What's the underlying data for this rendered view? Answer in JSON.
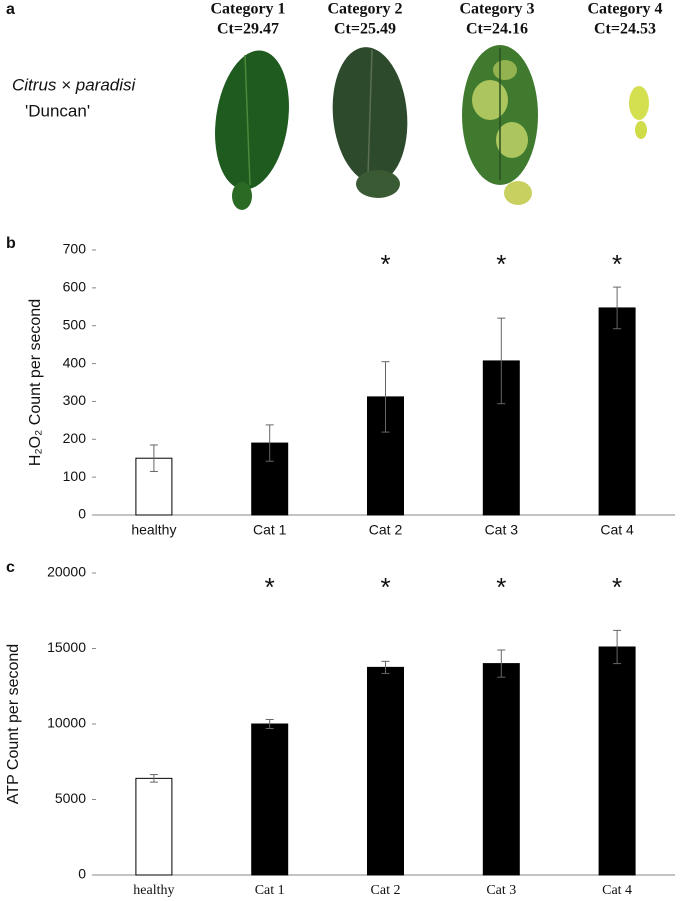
{
  "figure": {
    "panel_labels": [
      "a",
      "b",
      "c"
    ],
    "species": "Citrus × paradisi",
    "cultivar": "'Duncan'",
    "leaf_categories": [
      {
        "name": "Category 1",
        "ct": "Ct=29.47"
      },
      {
        "name": "Category 2",
        "ct": "Ct=25.49"
      },
      {
        "name": "Category 3",
        "ct": "Ct=24.16"
      },
      {
        "name": "Category 4",
        "ct": "Ct=24.53"
      }
    ]
  },
  "chart_data": [
    {
      "type": "bar",
      "ylabel": "H₂O₂ Count per second",
      "categories": [
        "healthy",
        "Cat 1",
        "Cat 2",
        "Cat 3",
        "Cat 4"
      ],
      "values": [
        150,
        190,
        312,
        407,
        547
      ],
      "errors": [
        35,
        48,
        93,
        113,
        55
      ],
      "colors": [
        "#ffffff",
        "#000000",
        "#000000",
        "#000000",
        "#000000"
      ],
      "annotations": [
        {
          "text": "*",
          "category": "Cat 2"
        },
        {
          "text": "*",
          "category": "Cat 3"
        },
        {
          "text": "*",
          "category": "Cat 4"
        }
      ],
      "ylim": [
        0,
        700
      ],
      "yticks": [
        0,
        100,
        200,
        300,
        400,
        500,
        600,
        700
      ]
    },
    {
      "type": "bar",
      "ylabel": "ATP Count per second",
      "categories": [
        "healthy",
        "Cat 1",
        "Cat 2",
        "Cat 3",
        "Cat 4"
      ],
      "values": [
        6400,
        10000,
        13750,
        14000,
        15100
      ],
      "errors": [
        250,
        300,
        400,
        900,
        1100
      ],
      "colors": [
        "#ffffff",
        "#000000",
        "#000000",
        "#000000",
        "#000000"
      ],
      "annotations": [
        {
          "text": "*",
          "category": "Cat 1"
        },
        {
          "text": "*",
          "category": "Cat 2"
        },
        {
          "text": "*",
          "category": "Cat 3"
        },
        {
          "text": "*",
          "category": "Cat 4"
        }
      ],
      "ylim": [
        0,
        20000
      ],
      "yticks": [
        0,
        5000,
        10000,
        15000,
        20000
      ]
    }
  ]
}
